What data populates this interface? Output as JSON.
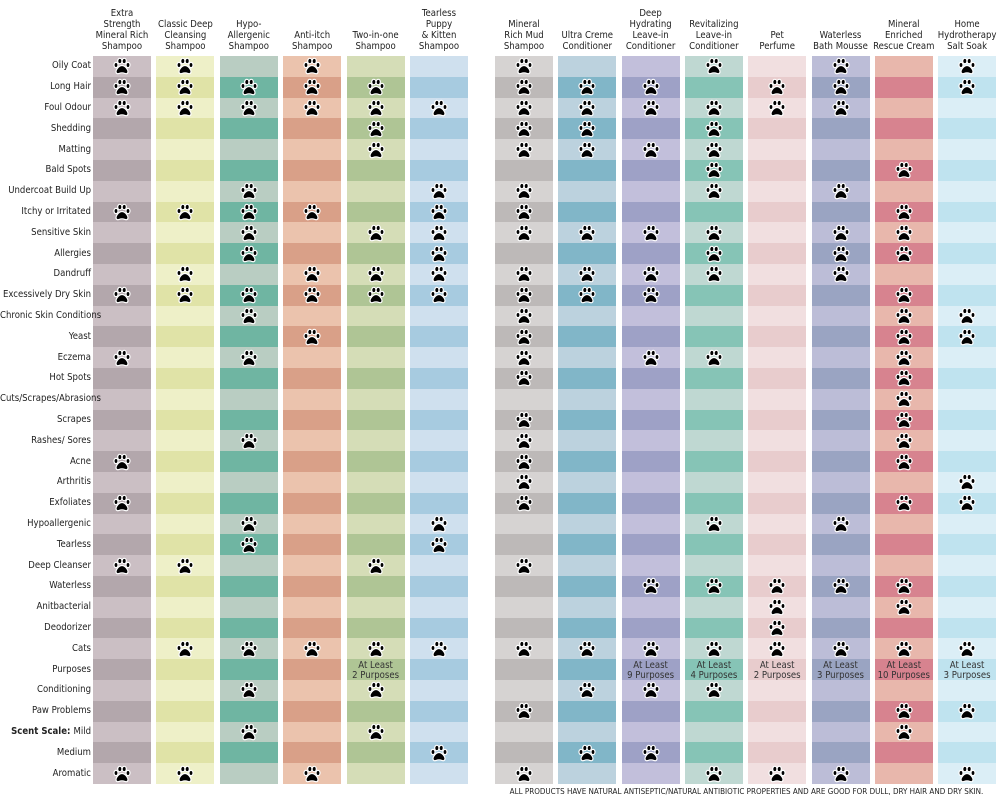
{
  "columns": [
    {
      "name": "Extra\nStrength\nMineral Rich\nShampoo",
      "light": "#cbbfc4",
      "dark": "#b3a7ac"
    },
    {
      "name": "Classic Deep\nCleansing\nShampoo",
      "light": "#eef0c8",
      "dark": "#e0e3a7"
    },
    {
      "name": "Hypo-\nAllergenic\nShampoo",
      "light": "#b9cdc2",
      "dark": "#6fb5a2"
    },
    {
      "name": "Anti-itch\nShampoo",
      "light": "#ebc3ad",
      "dark": "#d9a088"
    },
    {
      "name": "Two-in-one\nShampoo",
      "light": "#d5ddb7",
      "dark": "#afc595"
    },
    {
      "name": "Tearless\nPuppy\n& Kitten\nShampoo",
      "light": "#cfe0ee",
      "dark": "#a7cbe0"
    },
    {
      "name": "Mineral\nRich Mud\nShampoo",
      "light": "#d6d3d2",
      "dark": "#bdb9b8"
    },
    {
      "name": "Ultra Creme\nConditioner",
      "light": "#bcd2de",
      "dark": "#81b6c8"
    },
    {
      "name": "Deep\nHydrating\nLeave-in\nConditioner",
      "light": "#c2bfdb",
      "dark": "#9ea1c6"
    },
    {
      "name": "Revitalizing\nLeave-in\nConditioner",
      "light": "#bfd8d2",
      "dark": "#86c4b6"
    },
    {
      "name": "Pet\nPerfume",
      "light": "#f1dfe0",
      "dark": "#e8cccd"
    },
    {
      "name": "Waterless\nBath Mousse",
      "light": "#bcbdd7",
      "dark": "#9aa4c2"
    },
    {
      "name": "Mineral\nEnriched\nRescue Cream",
      "light": "#e8b7ac",
      "dark": "#d7838f"
    },
    {
      "name": "Home\nHydrotherapy\nSalt Soak",
      "light": "#dbeef6",
      "dark": "#bfe3ef"
    }
  ],
  "rows": [
    {
      "label": "Oily Coat",
      "paws": [
        0,
        1,
        3,
        6,
        9,
        11,
        13
      ]
    },
    {
      "label": "Long Hair",
      "paws": [
        0,
        1,
        2,
        3,
        4,
        6,
        7,
        8,
        10,
        11,
        13
      ]
    },
    {
      "label": "Foul Odour",
      "paws": [
        0,
        1,
        2,
        3,
        4,
        5,
        6,
        7,
        8,
        9,
        10,
        11
      ]
    },
    {
      "label": "Shedding",
      "paws": [
        4,
        6,
        7,
        9
      ]
    },
    {
      "label": "Matting",
      "paws": [
        4,
        6,
        7,
        8,
        9
      ]
    },
    {
      "label": "Bald Spots",
      "paws": [
        9,
        12
      ]
    },
    {
      "label": "Undercoat Build Up",
      "paws": [
        2,
        5,
        6,
        9,
        11
      ]
    },
    {
      "label": "Itchy or Irritated",
      "paws": [
        0,
        1,
        2,
        3,
        5,
        6,
        12
      ]
    },
    {
      "label": "Sensitive Skin",
      "paws": [
        2,
        4,
        5,
        6,
        7,
        8,
        9,
        11,
        12
      ]
    },
    {
      "label": "Allergies",
      "paws": [
        2,
        5,
        9,
        11,
        12
      ]
    },
    {
      "label": "Dandruff",
      "paws": [
        1,
        3,
        4,
        5,
        6,
        7,
        8,
        9,
        11
      ]
    },
    {
      "label": "Excessively Dry Skin",
      "paws": [
        0,
        1,
        2,
        3,
        4,
        5,
        6,
        7,
        8,
        12
      ]
    },
    {
      "label": "Chronic Skin Conditions",
      "paws": [
        2,
        6,
        12,
        13
      ]
    },
    {
      "label": "Yeast",
      "paws": [
        3,
        6,
        12,
        13
      ]
    },
    {
      "label": "Eczema",
      "paws": [
        0,
        2,
        6,
        8,
        9,
        12
      ]
    },
    {
      "label": "Hot Spots",
      "paws": [
        6,
        12
      ]
    },
    {
      "label": "Cuts/Scrapes/Abrasions",
      "paws": [
        12
      ]
    },
    {
      "label": "Scrapes",
      "paws": [
        6,
        12
      ]
    },
    {
      "label": "Rashes/ Sores",
      "paws": [
        2,
        6,
        12
      ]
    },
    {
      "label": "Acne",
      "paws": [
        0,
        6,
        12
      ]
    },
    {
      "label": "Arthritis",
      "paws": [
        6,
        13
      ]
    },
    {
      "label": "Exfoliates",
      "paws": [
        0,
        6,
        12,
        13
      ]
    },
    {
      "label": "Hypoallergenic",
      "paws": [
        2,
        5,
        9,
        11
      ]
    },
    {
      "label": "Tearless",
      "paws": [
        2,
        5
      ]
    },
    {
      "label": "Deep Cleanser",
      "paws": [
        0,
        1,
        4,
        6
      ]
    },
    {
      "label": "Waterless",
      "paws": [
        8,
        9,
        10,
        11,
        12
      ]
    },
    {
      "label": "Anitbacterial",
      "paws": [
        10,
        12
      ]
    },
    {
      "label": "Deodorizer",
      "paws": [
        10
      ]
    },
    {
      "label": "Cats",
      "paws": [
        1,
        2,
        3,
        4,
        5,
        6,
        7,
        8,
        9,
        10,
        11,
        12,
        13
      ]
    },
    {
      "label": "Purposes",
      "paws": [],
      "text": {
        "4": "At Least\n2 Purposes",
        "8": "At Least\n9 Purposes",
        "9": "At Least\n4 Purposes",
        "10": "At Least\n2 Purposes",
        "11": "At Least\n3 Purposes",
        "12": "At Least\n10 Purposes",
        "13": "At Least\n3 Purposes"
      }
    },
    {
      "label": "Conditioning",
      "paws": [
        2,
        4,
        7,
        8,
        9
      ]
    },
    {
      "label": "Paw Problems",
      "paws": [
        6,
        12,
        13
      ]
    },
    {
      "label": "Mild",
      "prefix": "Scent Scale:",
      "paws": [
        2,
        4,
        12
      ]
    },
    {
      "label": "Medium",
      "paws": [
        5,
        7,
        8
      ]
    },
    {
      "label": "Aromatic",
      "paws": [
        0,
        1,
        3,
        6,
        9,
        10,
        11,
        13
      ]
    }
  ],
  "paw_icon": "paw-print-icon",
  "footnote": "ALL PRODUCTS HAVE NATURAL ANTISEPTIC/NATURAL ANTIBIOTIC PROPERTIES AND ARE GOOD FOR DULL, DRY HAIR AND DRY SKIN."
}
